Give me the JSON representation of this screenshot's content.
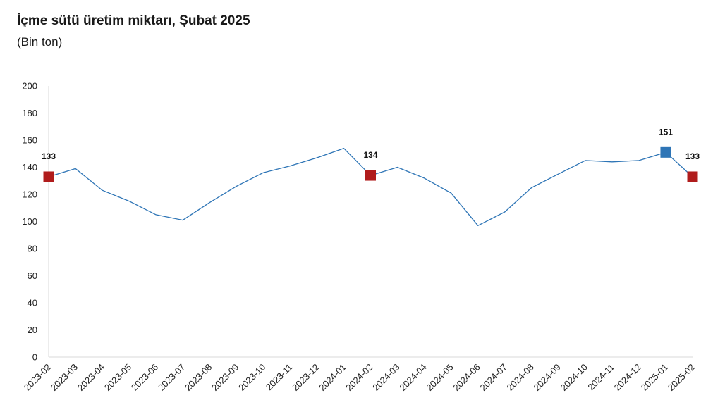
{
  "header": {
    "title": "İçme sütü üretim miktarı, Şubat 2025",
    "subtitle": "(Bin ton)"
  },
  "chart_data": {
    "type": "line",
    "title": "İçme sütü üretim miktarı, Şubat 2025",
    "subtitle": "(Bin ton)",
    "xlabel": "",
    "ylabel": "",
    "ylim": [
      0,
      200
    ],
    "yticks": [
      0,
      20,
      40,
      60,
      80,
      100,
      120,
      140,
      160,
      180,
      200
    ],
    "grid": false,
    "legend": "none",
    "categories": [
      "2023-02",
      "2023-03",
      "2023-04",
      "2023-05",
      "2023-06",
      "2023-07",
      "2023-08",
      "2023-09",
      "2023-10",
      "2023-11",
      "2023-12",
      "2024-01",
      "2024-02",
      "2024-03",
      "2024-04",
      "2024-05",
      "2024-06",
      "2024-07",
      "2024-08",
      "2024-09",
      "2024-10",
      "2024-11",
      "2024-12",
      "2025-01",
      "2025-02"
    ],
    "series": [
      {
        "values": [
          133,
          139,
          123,
          115,
          105,
          101,
          114,
          126,
          136,
          141,
          147,
          154,
          134,
          140,
          132,
          121,
          97,
          107,
          125,
          135,
          145,
          144,
          145,
          151,
          133
        ],
        "color": "#2e75b6"
      }
    ],
    "highlights": [
      {
        "category": "2023-02",
        "value": 133,
        "label": "133",
        "color": "#b01c1c"
      },
      {
        "category": "2024-02",
        "value": 134,
        "label": "134",
        "color": "#b01c1c"
      },
      {
        "category": "2025-01",
        "value": 151,
        "label": "151",
        "color": "#2e75b6"
      },
      {
        "category": "2025-02",
        "value": 133,
        "label": "133",
        "color": "#b01c1c"
      }
    ],
    "axis_color": "#d9d9d9"
  }
}
